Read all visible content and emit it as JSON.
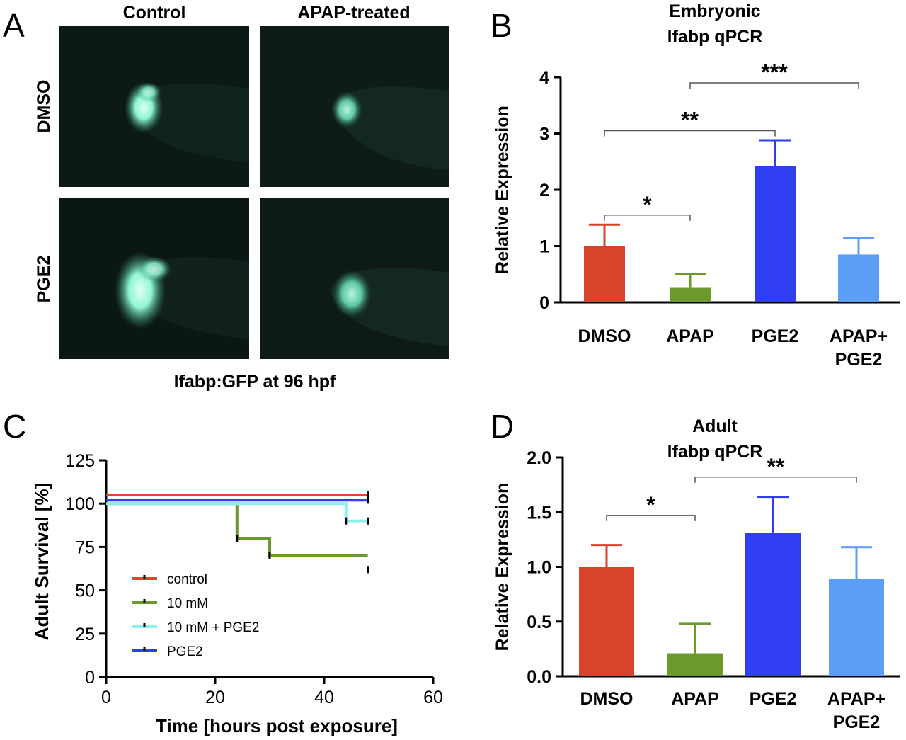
{
  "panel_letters": {
    "a": "A",
    "b": "B",
    "c": "C",
    "d": "D"
  },
  "panel_a": {
    "col_labels": [
      "Control",
      "APAP-treated"
    ],
    "row_labels": [
      "DMSO",
      "PGE2"
    ],
    "caption": "lfabp:GFP at 96 hpf",
    "fluor_color": "#7ff0c8"
  },
  "colors": {
    "dmso": "#d9432b",
    "apap": "#6b9a2a",
    "pge2": "#2e3ef0",
    "apap_pge2": "#5a9ef5",
    "ctrl_line": "#e8412b",
    "cyan_line": "#8ef0ee"
  },
  "chart_data": [
    {
      "type": "bar",
      "title": [
        "Embryonic",
        "lfabp qPCR"
      ],
      "ylabel": "Relative Expression",
      "xlabel": "",
      "categories": [
        [
          "DMSO"
        ],
        [
          "APAP"
        ],
        [
          "PGE2"
        ],
        [
          "APAP+",
          "PGE2"
        ]
      ],
      "values": [
        1.0,
        0.27,
        2.42,
        0.85
      ],
      "errors": [
        0.38,
        0.24,
        0.46,
        0.29
      ],
      "ylim": [
        0,
        4
      ],
      "yticks": [
        "0",
        "1",
        "2",
        "3",
        "4"
      ],
      "significance": [
        {
          "from": 0,
          "to": 1,
          "label": "*",
          "y": 1.55
        },
        {
          "from": 0,
          "to": 2,
          "label": "**",
          "y": 3.05
        },
        {
          "from": 1,
          "to": 3,
          "label": "***",
          "y": 3.9
        }
      ]
    },
    {
      "type": "line",
      "title": "",
      "xlabel": "Time [hours post exposure]",
      "ylabel": "Adult Survival [%]",
      "xlim": [
        0,
        60
      ],
      "ylim": [
        0,
        125
      ],
      "xticks": [
        "0",
        "20",
        "40",
        "60"
      ],
      "yticks": [
        "0",
        "25",
        "50",
        "75",
        "100",
        "125"
      ],
      "legend_position": "lower-left",
      "series": [
        {
          "name": "control",
          "points": [
            [
              0,
              105
            ],
            [
              48,
              105
            ]
          ],
          "censor": [
            [
              48,
              105
            ]
          ]
        },
        {
          "name": "10 mM",
          "points": [
            [
              0,
              100
            ],
            [
              24,
              100
            ],
            [
              24,
              80
            ],
            [
              30,
              80
            ],
            [
              30,
              70
            ],
            [
              48,
              70
            ]
          ],
          "censor": [
            [
              24,
              80
            ],
            [
              30,
              70
            ],
            [
              48,
              62
            ]
          ]
        },
        {
          "name": "10 mM + PGE2",
          "points": [
            [
              0,
              100
            ],
            [
              44,
              100
            ],
            [
              44,
              90
            ],
            [
              48,
              90
            ]
          ],
          "censor": [
            [
              44,
              90
            ],
            [
              48,
              90
            ]
          ]
        },
        {
          "name": "PGE2",
          "points": [
            [
              0,
              102
            ],
            [
              48,
              102
            ]
          ],
          "censor": [
            [
              48,
              102
            ]
          ]
        }
      ]
    },
    {
      "type": "bar",
      "title": [
        "Adult",
        "lfabp qPCR"
      ],
      "ylabel": "Relative Expression",
      "xlabel": "",
      "categories": [
        [
          "DMSO"
        ],
        [
          "APAP"
        ],
        [
          "PGE2"
        ],
        [
          "APAP+",
          "PGE2"
        ]
      ],
      "values": [
        1.0,
        0.21,
        1.31,
        0.89
      ],
      "errors": [
        0.2,
        0.27,
        0.33,
        0.29
      ],
      "ylim": [
        0,
        2.0
      ],
      "yticks": [
        "0.0",
        "0.5",
        "1.0",
        "1.5",
        "2.0"
      ],
      "significance": [
        {
          "from": 0,
          "to": 1,
          "label": "*",
          "y": 1.47
        },
        {
          "from": 1,
          "to": 3,
          "label": "**",
          "y": 1.82
        }
      ]
    }
  ]
}
